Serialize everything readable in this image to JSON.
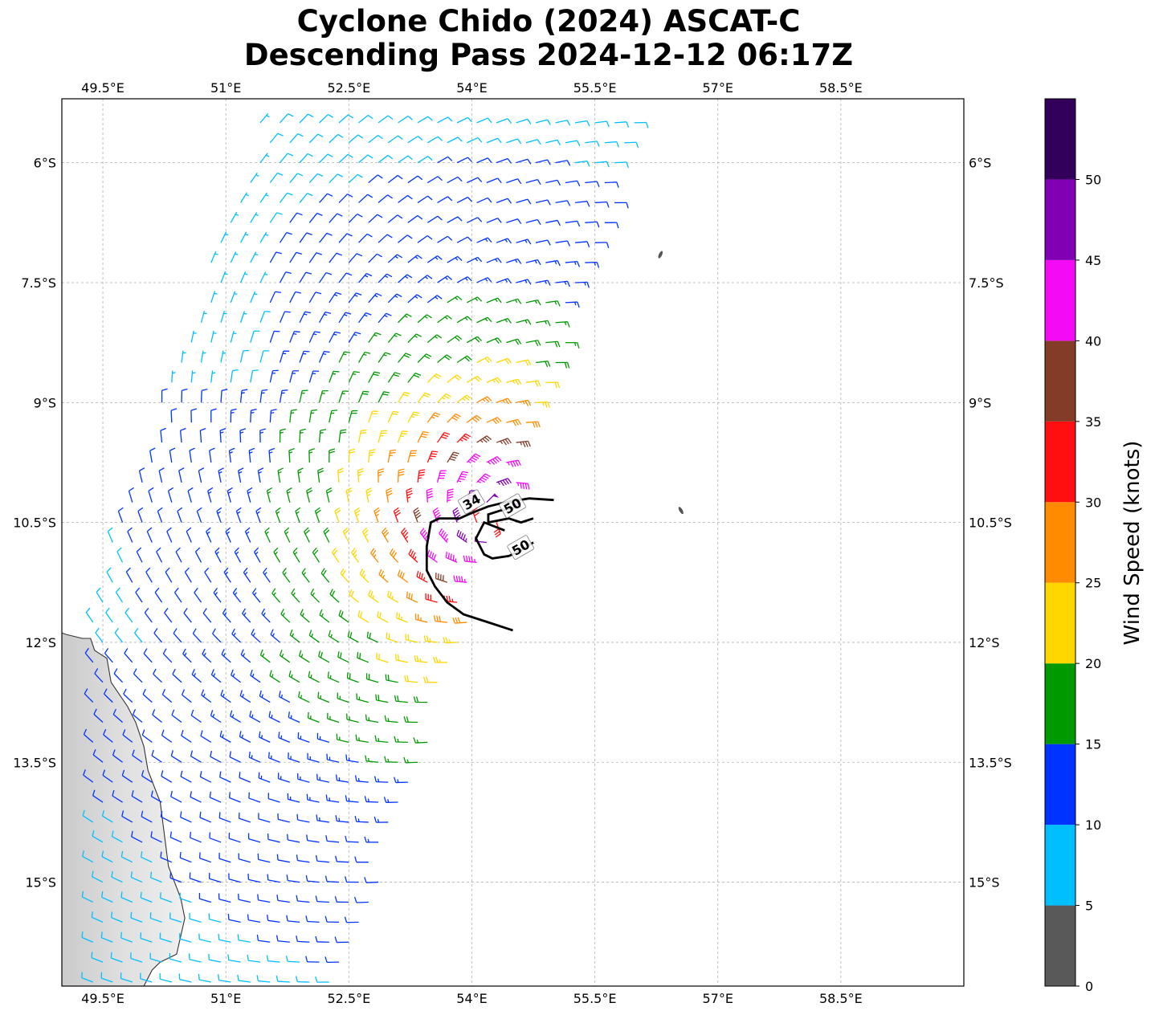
{
  "title": {
    "line1": "Cyclone Chido (2024) ASCAT-C",
    "line2": "Descending Pass 2024-12-12 06:17Z"
  },
  "map": {
    "lon_range": [
      49.0,
      60.0
    ],
    "lat_range": [
      -16.3,
      -5.2
    ],
    "lon_ticks": [
      {
        "value": 49.5,
        "label": "49.5°E"
      },
      {
        "value": 51.0,
        "label": "51°E"
      },
      {
        "value": 52.5,
        "label": "52.5°E"
      },
      {
        "value": 54.0,
        "label": "54°E"
      },
      {
        "value": 55.5,
        "label": "55.5°E"
      },
      {
        "value": 57.0,
        "label": "57°E"
      },
      {
        "value": 58.5,
        "label": "58.5°E"
      }
    ],
    "lat_ticks": [
      {
        "value": -6.0,
        "label": "6°S"
      },
      {
        "value": -7.5,
        "label": "7.5°S"
      },
      {
        "value": -9.0,
        "label": "9°S"
      },
      {
        "value": -10.5,
        "label": "10.5°S"
      },
      {
        "value": -12.0,
        "label": "12°S"
      },
      {
        "value": -13.5,
        "label": "13.5°S"
      },
      {
        "value": -15.0,
        "label": "15°S"
      }
    ],
    "gridlines": true,
    "cyclone_center": {
      "lon": 54.3,
      "lat": -10.5
    },
    "contours": [
      {
        "label": "34",
        "label_pos": {
          "lon": 54.0,
          "lat": -10.25
        }
      },
      {
        "label": "50",
        "label_pos": {
          "lon": 54.5,
          "lat": -10.3
        }
      },
      {
        "label": "50",
        "label_pos": {
          "lon": 54.6,
          "lat": -10.82
        }
      }
    ]
  },
  "colorbar": {
    "label": "Wind Speed (knots)",
    "bounds": [
      0,
      5,
      10,
      15,
      20,
      25,
      30,
      35,
      40,
      45,
      50,
      55
    ],
    "colors": [
      "#595959",
      "#00bfff",
      "#0033ff",
      "#009900",
      "#ffd700",
      "#ff8c00",
      "#ff0f0f",
      "#823c28",
      "#f50af5",
      "#8200b4",
      "#32005a"
    ],
    "tick_labels": [
      "0",
      "5",
      "10",
      "15",
      "20",
      "25",
      "30",
      "35",
      "40",
      "45",
      "50"
    ]
  }
}
